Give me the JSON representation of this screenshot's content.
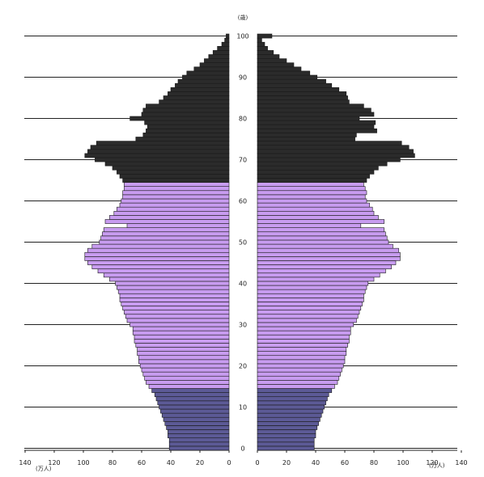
{
  "chart_data": {
    "type": "bar",
    "orientation": "horizontal-pyramid",
    "age_unit": "(歳)",
    "value_unit": "(万人)",
    "age_ticks": [
      "0",
      "10",
      "20",
      "30",
      "40",
      "50",
      "60",
      "70",
      "80",
      "90",
      "100"
    ],
    "value_ticks_left": [
      "140",
      "120",
      "100",
      "80",
      "60",
      "40",
      "20",
      "0"
    ],
    "value_ticks_right": [
      "0",
      "20",
      "40",
      "60",
      "80",
      "100",
      "120",
      "140"
    ],
    "xlim": [
      0,
      140
    ],
    "ylim": [
      0,
      100
    ],
    "grid": true,
    "age_groups": [
      {
        "name": "0-14",
        "color": "#5c5a96"
      },
      {
        "name": "15-64",
        "color": "#c89cf0"
      },
      {
        "name": "65+",
        "color": "#2b2b2b"
      }
    ],
    "ages": [
      0,
      1,
      2,
      3,
      4,
      5,
      6,
      7,
      8,
      9,
      10,
      11,
      12,
      13,
      14,
      15,
      16,
      17,
      18,
      19,
      20,
      21,
      22,
      23,
      24,
      25,
      26,
      27,
      28,
      29,
      30,
      31,
      32,
      33,
      34,
      35,
      36,
      37,
      38,
      39,
      40,
      41,
      42,
      43,
      44,
      45,
      46,
      47,
      48,
      49,
      50,
      51,
      52,
      53,
      54,
      55,
      56,
      57,
      58,
      59,
      60,
      61,
      62,
      63,
      64,
      65,
      66,
      67,
      68,
      69,
      70,
      71,
      72,
      73,
      74,
      75,
      76,
      77,
      78,
      79,
      80,
      81,
      82,
      83,
      84,
      85,
      86,
      87,
      88,
      89,
      90,
      91,
      92,
      93,
      94,
      95,
      96,
      97,
      98,
      99,
      100
    ],
    "series": [
      {
        "side": "left",
        "values": [
          41,
          41,
          41,
          42,
          42,
          43,
          44,
          45,
          46,
          47,
          48,
          49,
          50,
          51,
          53,
          55,
          57,
          58,
          59,
          60,
          61,
          62,
          62,
          63,
          63,
          64,
          65,
          65,
          66,
          66,
          68,
          70,
          71,
          72,
          73,
          74,
          75,
          75,
          76,
          77,
          78,
          82,
          86,
          90,
          94,
          97,
          99,
          99,
          97,
          94,
          89,
          88,
          87,
          86,
          70,
          85,
          82,
          79,
          77,
          75,
          74,
          73,
          73,
          72,
          72,
          73,
          75,
          77,
          80,
          85,
          92,
          99,
          97,
          95,
          91,
          64,
          59,
          57,
          56,
          58,
          68,
          60,
          59,
          57,
          48,
          45,
          42,
          40,
          37,
          35,
          32,
          29,
          24,
          20,
          17,
          14,
          11,
          8,
          5,
          3,
          2
        ]
      },
      {
        "side": "right",
        "values": [
          39,
          39,
          39,
          40,
          40,
          41,
          42,
          43,
          44,
          45,
          46,
          47,
          48,
          49,
          51,
          53,
          55,
          56,
          57,
          58,
          59,
          60,
          60,
          61,
          61,
          62,
          63,
          63,
          64,
          64,
          66,
          68,
          69,
          70,
          71,
          72,
          73,
          73,
          74,
          75,
          76,
          80,
          84,
          88,
          92,
          95,
          98,
          98,
          97,
          93,
          90,
          89,
          88,
          87,
          71,
          87,
          83,
          80,
          79,
          77,
          75,
          74,
          75,
          74,
          73,
          75,
          77,
          80,
          83,
          89,
          98,
          108,
          107,
          104,
          99,
          67,
          68,
          82,
          80,
          81,
          70,
          80,
          78,
          73,
          63,
          62,
          61,
          56,
          51,
          47,
          41,
          36,
          30,
          25,
          20,
          15,
          11,
          7,
          5,
          3,
          10
        ]
      }
    ]
  }
}
